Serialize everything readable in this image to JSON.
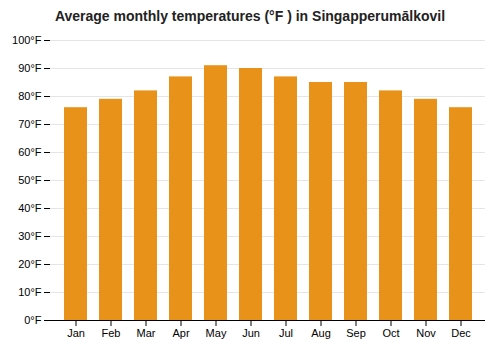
{
  "chart_data": {
    "type": "bar",
    "title": "Average monthly temperatures (°F ) in Singapperumālkovil",
    "categories": [
      "Jan",
      "Feb",
      "Mar",
      "Apr",
      "May",
      "Jun",
      "Jul",
      "Aug",
      "Sep",
      "Oct",
      "Nov",
      "Dec"
    ],
    "values": [
      76,
      79,
      82,
      87,
      91,
      90,
      87,
      85,
      85,
      82,
      79,
      76
    ],
    "color": "#E8921A",
    "ylim": [
      0,
      100
    ],
    "yticks": [
      {
        "value": 0,
        "label": "0°F"
      },
      {
        "value": 10,
        "label": "10°F"
      },
      {
        "value": 20,
        "label": "20°F"
      },
      {
        "value": 30,
        "label": "30°F"
      },
      {
        "value": 40,
        "label": "40°F"
      },
      {
        "value": 50,
        "label": "50°F"
      },
      {
        "value": 60,
        "label": "60°F"
      },
      {
        "value": 70,
        "label": "70°F"
      },
      {
        "value": 80,
        "label": "80°F"
      },
      {
        "value": 90,
        "label": "90°F"
      },
      {
        "value": 100,
        "label": "100°F"
      }
    ],
    "grid": true
  }
}
